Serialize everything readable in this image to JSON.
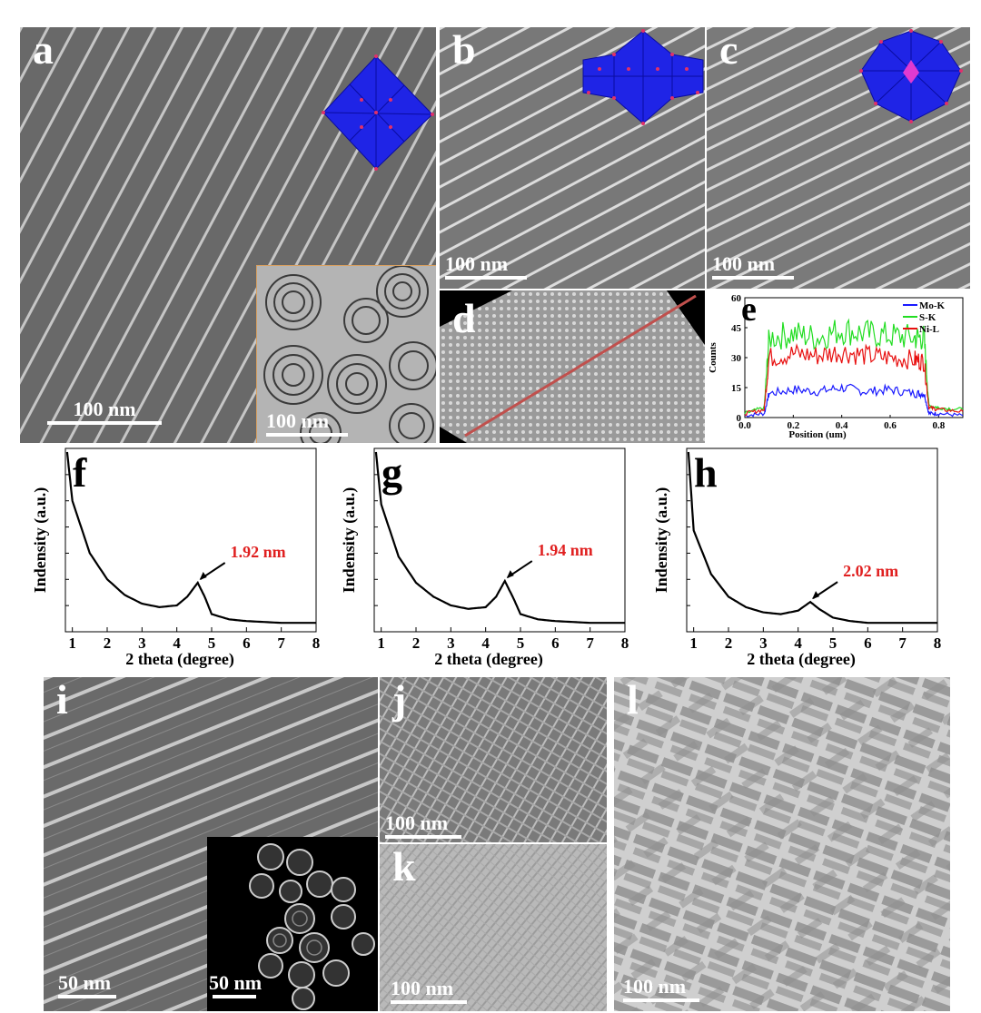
{
  "panels": {
    "a": {
      "letter": "a",
      "scale": "100 nm",
      "inset_scale": "100 nm"
    },
    "b": {
      "letter": "b",
      "scale": "100 nm"
    },
    "c": {
      "letter": "c",
      "scale": "100 nm"
    },
    "d": {
      "letter": "d"
    },
    "e": {
      "letter": "e"
    },
    "f": {
      "letter": "f"
    },
    "g": {
      "letter": "g"
    },
    "h": {
      "letter": "h"
    },
    "i": {
      "letter": "i",
      "scale": "50 nm",
      "inset_scale": "50 nm"
    },
    "j": {
      "letter": "j",
      "scale": "100 nm"
    },
    "k": {
      "letter": "k",
      "scale": "100 nm"
    },
    "l": {
      "letter": "l",
      "scale": "100 nm"
    }
  },
  "colors": {
    "polyhedron": "#1f24e6",
    "polyhedron_edge": "#0a0ca0",
    "vertex": "#e0306a",
    "annotation": "#e02020",
    "line_profile": "#c0504d",
    "mo": "#1a1aff",
    "s": "#22dd22",
    "ni": "#e81010"
  },
  "chart_data": [
    {
      "panel": "e",
      "type": "line",
      "xlabel": "Position (um)",
      "ylabel": "Counts",
      "xlim": [
        0.0,
        0.9
      ],
      "ylim": [
        0,
        60
      ],
      "xticks": [
        "0.0",
        "0.2",
        "0.4",
        "0.6",
        "0.8"
      ],
      "yticks": [
        "0",
        "15",
        "30",
        "45",
        "60"
      ],
      "legend_position": "top-right",
      "series": [
        {
          "name": "Mo-K",
          "color": "#1a1aff",
          "x": [
            0.0,
            0.08,
            0.1,
            0.2,
            0.3,
            0.4,
            0.5,
            0.6,
            0.7,
            0.74,
            0.76,
            0.8,
            0.9
          ],
          "values": [
            1,
            2,
            12,
            14,
            13,
            15,
            13,
            14,
            12,
            12,
            2,
            2,
            1
          ]
        },
        {
          "name": "S-K",
          "color": "#22dd22",
          "x": [
            0.0,
            0.08,
            0.1,
            0.2,
            0.3,
            0.4,
            0.5,
            0.6,
            0.7,
            0.74,
            0.76,
            0.8,
            0.9
          ],
          "values": [
            2,
            5,
            40,
            42,
            40,
            44,
            42,
            41,
            40,
            40,
            6,
            5,
            4
          ]
        },
        {
          "name": "Ni-L",
          "color": "#e81010",
          "x": [
            0.0,
            0.08,
            0.1,
            0.2,
            0.3,
            0.4,
            0.5,
            0.6,
            0.7,
            0.74,
            0.76,
            0.8,
            0.9
          ],
          "values": [
            2,
            4,
            30,
            32,
            31,
            33,
            31,
            30,
            29,
            28,
            5,
            4,
            3
          ]
        }
      ]
    },
    {
      "panel": "f",
      "type": "line",
      "xlabel": "2 theta (degree)",
      "ylabel": "Indensity (a.u.)",
      "xlim": [
        0.8,
        8
      ],
      "xticks": [
        "1",
        "2",
        "3",
        "4",
        "5",
        "6",
        "7",
        "8"
      ],
      "annotation": "1.92 nm",
      "peak_x": 4.6,
      "series": [
        {
          "x": [
            0.85,
            1.0,
            1.5,
            2.0,
            2.5,
            3.0,
            3.5,
            4.0,
            4.3,
            4.6,
            4.8,
            5.0,
            5.5,
            6.0,
            7.0,
            8.0
          ],
          "values": [
            1.0,
            0.72,
            0.42,
            0.27,
            0.18,
            0.13,
            0.11,
            0.12,
            0.17,
            0.25,
            0.17,
            0.07,
            0.04,
            0.03,
            0.02,
            0.02
          ]
        }
      ]
    },
    {
      "panel": "g",
      "type": "line",
      "xlabel": "2 theta (degree)",
      "ylabel": "Indensity (a.u.)",
      "xlim": [
        0.8,
        8
      ],
      "xticks": [
        "1",
        "2",
        "3",
        "4",
        "5",
        "6",
        "7",
        "8"
      ],
      "annotation": "1.94 nm",
      "peak_x": 4.55,
      "series": [
        {
          "x": [
            0.85,
            1.0,
            1.5,
            2.0,
            2.5,
            3.0,
            3.5,
            4.0,
            4.3,
            4.55,
            4.8,
            5.0,
            5.5,
            6.0,
            7.0,
            8.0
          ],
          "values": [
            1.0,
            0.7,
            0.4,
            0.25,
            0.17,
            0.12,
            0.1,
            0.11,
            0.17,
            0.26,
            0.16,
            0.07,
            0.04,
            0.03,
            0.02,
            0.02
          ]
        }
      ]
    },
    {
      "panel": "h",
      "type": "line",
      "xlabel": "2 theta (degree)",
      "ylabel": "Indensity (a.u.)",
      "xlim": [
        0.8,
        8
      ],
      "xticks": [
        "1",
        "2",
        "3",
        "4",
        "5",
        "6",
        "7",
        "8"
      ],
      "annotation": "2.02 nm",
      "peak_x": 4.35,
      "series": [
        {
          "x": [
            0.85,
            1.0,
            1.5,
            2.0,
            2.5,
            3.0,
            3.5,
            4.0,
            4.35,
            4.6,
            5.0,
            5.5,
            6.0,
            7.0,
            8.0
          ],
          "values": [
            1.0,
            0.55,
            0.3,
            0.17,
            0.11,
            0.08,
            0.07,
            0.09,
            0.14,
            0.1,
            0.05,
            0.03,
            0.02,
            0.02,
            0.02
          ]
        }
      ]
    }
  ]
}
